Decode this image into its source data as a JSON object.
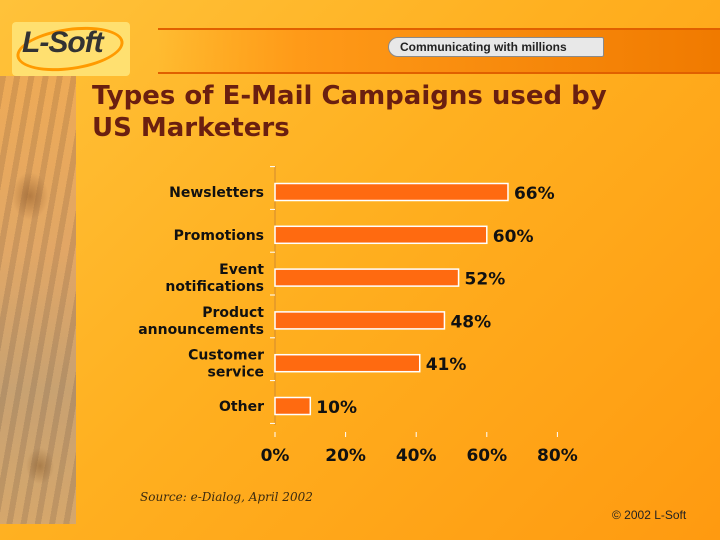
{
  "header": {
    "logo_text": "L-Soft",
    "tagline": "Communicating with millions"
  },
  "slide": {
    "title_line1": "Types of E-Mail Campaigns used by",
    "title_line2": "US Marketers",
    "source": "Source: e-Dialog, April 2002",
    "copyright": "© 2002 L-Soft"
  },
  "colors": {
    "bar_fill": "#ff6a10",
    "bar_stroke": "#ffffff",
    "title": "#6a1f10"
  },
  "chart_data": {
    "type": "bar",
    "orientation": "horizontal",
    "categories": [
      [
        "Newsletters"
      ],
      [
        "Promotions"
      ],
      [
        "Event",
        "notifications"
      ],
      [
        "Product",
        "announcements"
      ],
      [
        "Customer",
        "service"
      ],
      [
        "Other"
      ]
    ],
    "values": [
      66,
      60,
      52,
      48,
      41,
      10
    ],
    "value_labels": [
      "66%",
      "60%",
      "52%",
      "48%",
      "41%",
      "10%"
    ],
    "xlim": [
      0,
      80
    ],
    "x_ticks": [
      0,
      20,
      40,
      60,
      80
    ],
    "x_tick_labels": [
      "0%",
      "20%",
      "40%",
      "60%",
      "80%"
    ],
    "grid": false
  }
}
